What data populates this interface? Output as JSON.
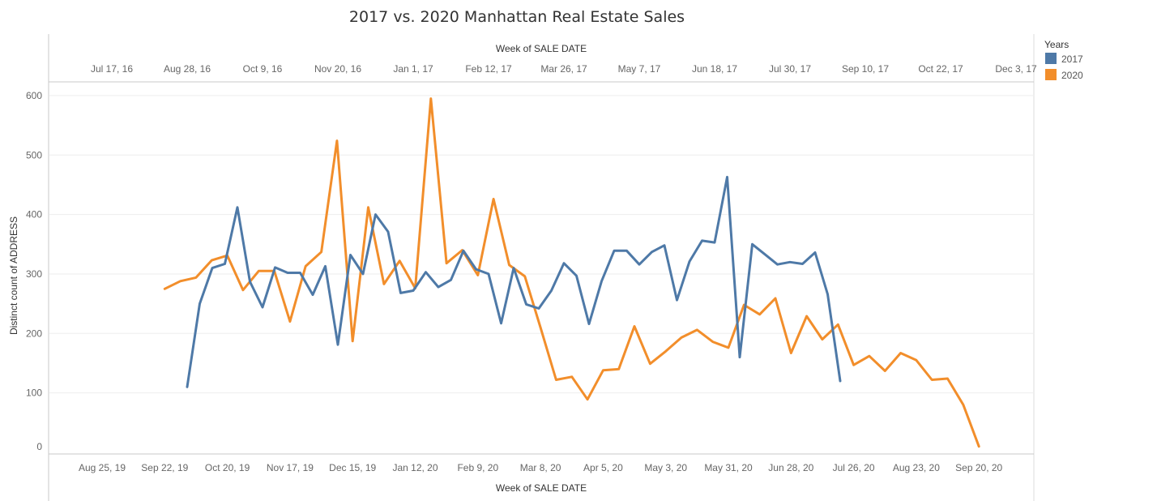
{
  "chart_data": {
    "type": "line",
    "title": "2017 vs. 2020 Manhattan Real Estate Sales",
    "ylabel": "Distinct count of ADDRESS",
    "ylim": [
      0,
      628
    ],
    "y_ticks": [
      "0",
      "100",
      "200",
      "300",
      "400",
      "500",
      "600"
    ],
    "x_top": {
      "label": "Week of SALE DATE",
      "ticks": [
        "Jul 17, 16",
        "Aug 28, 16",
        "Oct 9, 16",
        "Nov 20, 16",
        "Jan 1, 17",
        "Feb 12, 17",
        "Mar 26, 17",
        "May 7, 17",
        "Jun 18, 17",
        "Jul 30, 17",
        "Sep 10, 17",
        "Oct 22, 17",
        "Dec 3, 17"
      ]
    },
    "x_bottom": {
      "label": "Week of SALE DATE",
      "ticks": [
        "Aug 25, 19",
        "Sep 22, 19",
        "Oct 20, 19",
        "Nov 17, 19",
        "Dec 15, 19",
        "Jan 12, 20",
        "Feb 9, 20",
        "Mar 8, 20",
        "Apr 5, 20",
        "May 3, 20",
        "May 31, 20",
        "Jun 28, 20",
        "Jul 26, 20",
        "Aug 23, 20",
        "Sep 20, 20"
      ]
    },
    "legend": {
      "title": "Years",
      "position": "right",
      "entries": [
        {
          "label": "2017",
          "color": "#4e79a7"
        },
        {
          "label": "2020",
          "color": "#f28e2b"
        }
      ]
    },
    "grid": true,
    "series": [
      {
        "name": "2017",
        "color": "#4e79a7",
        "axis": "top",
        "x": [
          "2016-08-28",
          "2016-09-04",
          "2016-09-11",
          "2016-09-18",
          "2016-09-25",
          "2016-10-02",
          "2016-10-09",
          "2016-10-16",
          "2016-10-23",
          "2016-10-30",
          "2016-11-06",
          "2016-11-13",
          "2016-11-20",
          "2016-11-27",
          "2016-12-04",
          "2016-12-11",
          "2016-12-18",
          "2016-12-25",
          "2017-01-01",
          "2017-01-08",
          "2017-01-15",
          "2017-01-22",
          "2017-01-29",
          "2017-02-05",
          "2017-02-12",
          "2017-02-19",
          "2017-02-26",
          "2017-03-05",
          "2017-03-12",
          "2017-03-19",
          "2017-03-26",
          "2017-04-02",
          "2017-04-09",
          "2017-04-16",
          "2017-04-23",
          "2017-04-30",
          "2017-05-07",
          "2017-05-14",
          "2017-05-21",
          "2017-05-28",
          "2017-06-04",
          "2017-06-11",
          "2017-06-18",
          "2017-06-25",
          "2017-07-02",
          "2017-07-09",
          "2017-07-16",
          "2017-07-23",
          "2017-07-30",
          "2017-08-06",
          "2017-08-13",
          "2017-08-20",
          "2017-08-27",
          "2017-09-03"
        ],
        "values": [
          110,
          250,
          310,
          317,
          412,
          287,
          244,
          311,
          302,
          302,
          265,
          313,
          181,
          332,
          300,
          400,
          371,
          268,
          272,
          303,
          278,
          290,
          339,
          308,
          300,
          217,
          310,
          249,
          242,
          272,
          318,
          297,
          216,
          288,
          339,
          339,
          316,
          337,
          348,
          256,
          321,
          356,
          353,
          463,
          160,
          350,
          333,
          316,
          320,
          317,
          336,
          266,
          120,
          null
        ]
      },
      {
        "name": "2020",
        "color": "#f28e2b",
        "axis": "bottom",
        "x": [
          "2019-09-22",
          "2019-09-29",
          "2019-10-06",
          "2019-10-13",
          "2019-10-20",
          "2019-10-27",
          "2019-11-03",
          "2019-11-10",
          "2019-11-17",
          "2019-11-24",
          "2019-12-01",
          "2019-12-08",
          "2019-12-15",
          "2019-12-22",
          "2019-12-29",
          "2020-01-05",
          "2020-01-12",
          "2020-01-19",
          "2020-01-26",
          "2020-02-02",
          "2020-02-09",
          "2020-02-16",
          "2020-02-23",
          "2020-03-01",
          "2020-03-08",
          "2020-03-15",
          "2020-03-22",
          "2020-03-29",
          "2020-04-05",
          "2020-04-12",
          "2020-04-19",
          "2020-04-26",
          "2020-05-03",
          "2020-05-10",
          "2020-05-17",
          "2020-05-24",
          "2020-05-31",
          "2020-06-07",
          "2020-06-14",
          "2020-06-21",
          "2020-06-28",
          "2020-07-05",
          "2020-07-12",
          "2020-07-19",
          "2020-07-26",
          "2020-08-02",
          "2020-08-09",
          "2020-08-16",
          "2020-08-23",
          "2020-08-30",
          "2020-09-06",
          "2020-09-13",
          "2020-09-20",
          "2020-09-27",
          "2020-10-04"
        ],
        "values": [
          275,
          288,
          294,
          323,
          331,
          273,
          305,
          305,
          220,
          313,
          337,
          524,
          187,
          412,
          283,
          322,
          276,
          595,
          318,
          340,
          298,
          426,
          315,
          296,
          210,
          122,
          127,
          89,
          138,
          140,
          212,
          149,
          170,
          193,
          206,
          186,
          176,
          248,
          232,
          259,
          167,
          229,
          190,
          215,
          147,
          162,
          137,
          167,
          155,
          122,
          124,
          80,
          10,
          null,
          null
        ]
      }
    ]
  }
}
